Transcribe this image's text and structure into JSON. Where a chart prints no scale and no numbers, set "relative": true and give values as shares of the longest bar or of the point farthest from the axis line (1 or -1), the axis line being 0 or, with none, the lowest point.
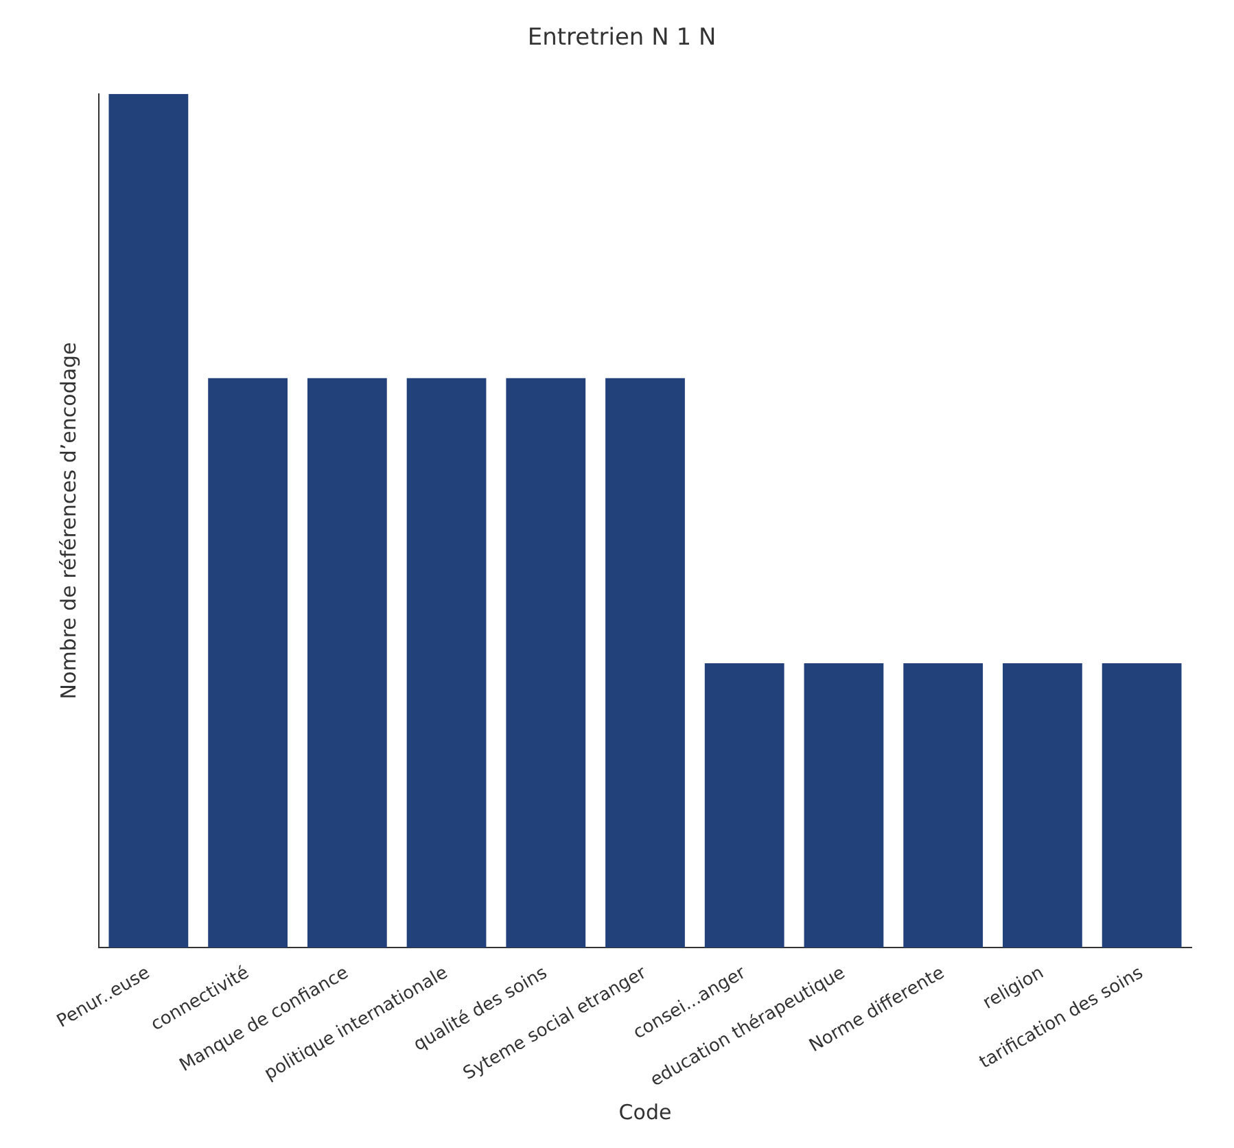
{
  "chart_data": {
    "type": "bar",
    "title": "Entretrien N 1 N",
    "xlabel": "Code",
    "ylabel": "Nombre de références d’encodage",
    "relative": true,
    "categories": [
      "Penur..euse",
      "connectivité",
      "Manque de confiance",
      "politique internationale",
      "qualité des soins",
      "Syteme social etranger",
      "consei...anger",
      "education thérapeutique",
      "Norme differente",
      "religion",
      "tarification des soins"
    ],
    "values": [
      1,
      0.667,
      0.667,
      0.667,
      0.667,
      0.667,
      0.333,
      0.333,
      0.333,
      0.333,
      0.333
    ],
    "color": "#22407a"
  }
}
